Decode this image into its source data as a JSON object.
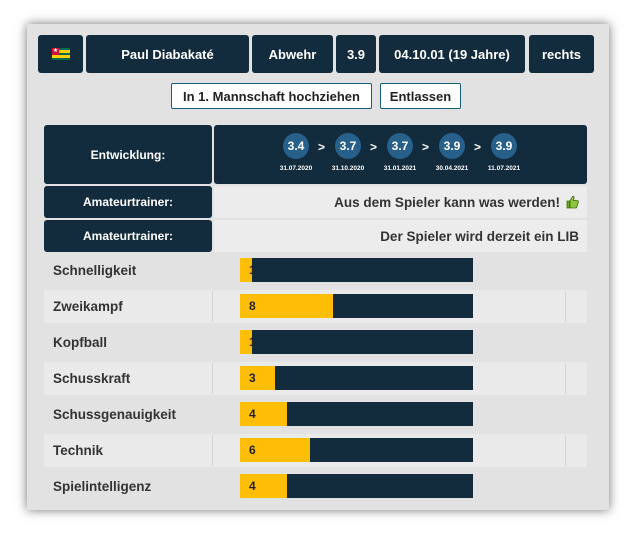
{
  "header": {
    "flag_icon": "togo-flag-icon",
    "player_name": "Paul Diabakaté",
    "position": "Abwehr",
    "rating": "3.9",
    "birth": "04.10.01 (19 Jahre)",
    "foot": "rechts"
  },
  "actions": {
    "promote_label": "In 1. Mannschaft hochziehen",
    "dismiss_label": "Entlassen"
  },
  "development": {
    "label": "Entwicklung:",
    "steps": [
      {
        "value": "3.4",
        "date": "31.07.2020"
      },
      {
        "value": "3.7",
        "date": "31.10.2020"
      },
      {
        "value": "3.7",
        "date": "31.01.2021"
      },
      {
        "value": "3.9",
        "date": "30.04.2021"
      },
      {
        "value": "3.9",
        "date": "11.07.2021"
      }
    ],
    "arrow": ">"
  },
  "trainer_comments": [
    {
      "label": "Amateurtrainer:",
      "text": "Aus dem Spieler kann was werden!",
      "icon": "thumbs-up-icon"
    },
    {
      "label": "Amateurtrainer:",
      "text": "Der Spieler wird derzeit ein LIB"
    }
  ],
  "attributes": {
    "max": 20,
    "items": [
      {
        "name": "Schnelligkeit",
        "value": 1
      },
      {
        "name": "Zweikampf",
        "value": 8
      },
      {
        "name": "Kopfball",
        "value": 1
      },
      {
        "name": "Schusskraft",
        "value": 3
      },
      {
        "name": "Schussgenauigkeit",
        "value": 4
      },
      {
        "name": "Technik",
        "value": 6
      },
      {
        "name": "Spielintelligenz",
        "value": 4
      }
    ]
  },
  "colors": {
    "dark": "#132c3d",
    "accent_circle": "#27608a",
    "bar_fill": "#fdbe05",
    "panel": "#e2e2e2"
  }
}
